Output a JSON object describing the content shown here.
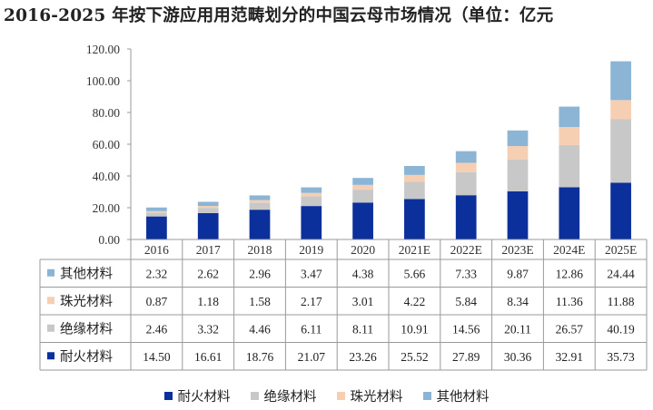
{
  "title": "2016-2025 年按下游应用用范畴划分的中国云母市场情况（单位：亿元",
  "colors": {
    "refractory": "#0b2f9b",
    "insulation": "#c8c8c8",
    "pearlescent": "#f6cfb3",
    "other": "#8cb4d4",
    "grid": "#d9d9d9",
    "axis": "#9a9a9a"
  },
  "chart_data": {
    "type": "bar",
    "stacked": true,
    "categories": [
      "2016",
      "2017",
      "2018",
      "2019",
      "2020",
      "2021E",
      "2022E",
      "2023E",
      "2024E",
      "2025E"
    ],
    "y_ticks": [
      "0.00",
      "20.00",
      "40.00",
      "60.00",
      "80.00",
      "100.00",
      "120.00"
    ],
    "ylim": [
      0,
      120
    ],
    "grid": false,
    "legend_position": "bottom",
    "series": [
      {
        "name": "耐火材料",
        "color_key": "refractory",
        "values": [
          14.5,
          16.61,
          18.76,
          21.07,
          23.26,
          25.52,
          27.89,
          30.36,
          32.91,
          35.73
        ],
        "labels": [
          "14.50",
          "16.61",
          "18.76",
          "21.07",
          "23.26",
          "25.52",
          "27.89",
          "30.36",
          "32.91",
          "35.73"
        ]
      },
      {
        "name": "绝缘材料",
        "color_key": "insulation",
        "values": [
          2.46,
          3.32,
          4.46,
          6.11,
          8.11,
          10.91,
          14.56,
          20.11,
          26.57,
          40.19
        ],
        "labels": [
          "2.46",
          "3.32",
          "4.46",
          "6.11",
          "8.11",
          "10.91",
          "14.56",
          "20.11",
          "26.57",
          "40.19"
        ]
      },
      {
        "name": "珠光材料",
        "color_key": "pearlescent",
        "values": [
          0.87,
          1.18,
          1.58,
          2.17,
          3.01,
          4.22,
          5.84,
          8.34,
          11.36,
          11.88
        ],
        "labels": [
          "0.87",
          "1.18",
          "1.58",
          "2.17",
          "3.01",
          "4.22",
          "5.84",
          "8.34",
          "11.36",
          "11.88"
        ]
      },
      {
        "name": "其他材料",
        "color_key": "other",
        "values": [
          2.32,
          2.62,
          2.96,
          3.47,
          4.38,
          5.66,
          7.33,
          9.87,
          12.86,
          24.44
        ],
        "labels": [
          "2.32",
          "2.62",
          "2.96",
          "3.47",
          "4.38",
          "5.66",
          "7.33",
          "9.87",
          "12.86",
          "24.44"
        ]
      }
    ],
    "table_row_order": [
      3,
      2,
      1,
      0
    ],
    "legend_order": [
      0,
      1,
      2,
      3
    ]
  }
}
